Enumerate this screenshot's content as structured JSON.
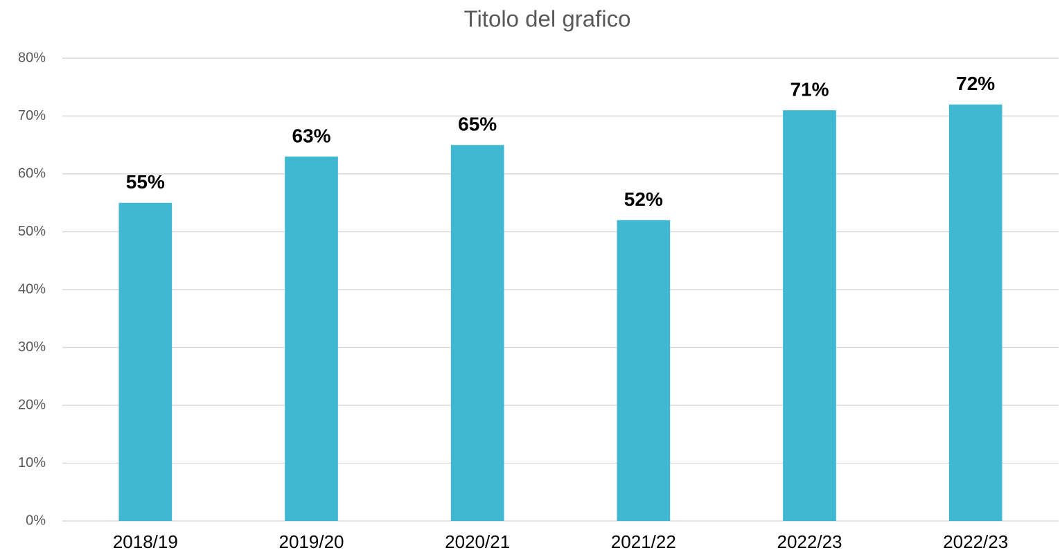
{
  "chart_data": {
    "type": "bar",
    "title": "Titolo del grafico",
    "categories": [
      "2018/19",
      "2019/20",
      "2020/21",
      "2021/22",
      "2022/23",
      "2022/23"
    ],
    "values": [
      55,
      63,
      65,
      52,
      71,
      72
    ],
    "value_labels": [
      "55%",
      "63%",
      "65%",
      "52%",
      "71%",
      "72%"
    ],
    "color": "#40b8d2",
    "ylim": [
      0,
      80
    ],
    "yticks": [
      {
        "value": 0,
        "label": "0%"
      },
      {
        "value": 10,
        "label": "10%"
      },
      {
        "value": 20,
        "label": "20%"
      },
      {
        "value": 30,
        "label": "30%"
      },
      {
        "value": 40,
        "label": "40%"
      },
      {
        "value": 50,
        "label": "50%"
      },
      {
        "value": 60,
        "label": "60%"
      },
      {
        "value": 70,
        "label": "70%"
      },
      {
        "value": 80,
        "label": "80%"
      }
    ],
    "grid": true
  }
}
